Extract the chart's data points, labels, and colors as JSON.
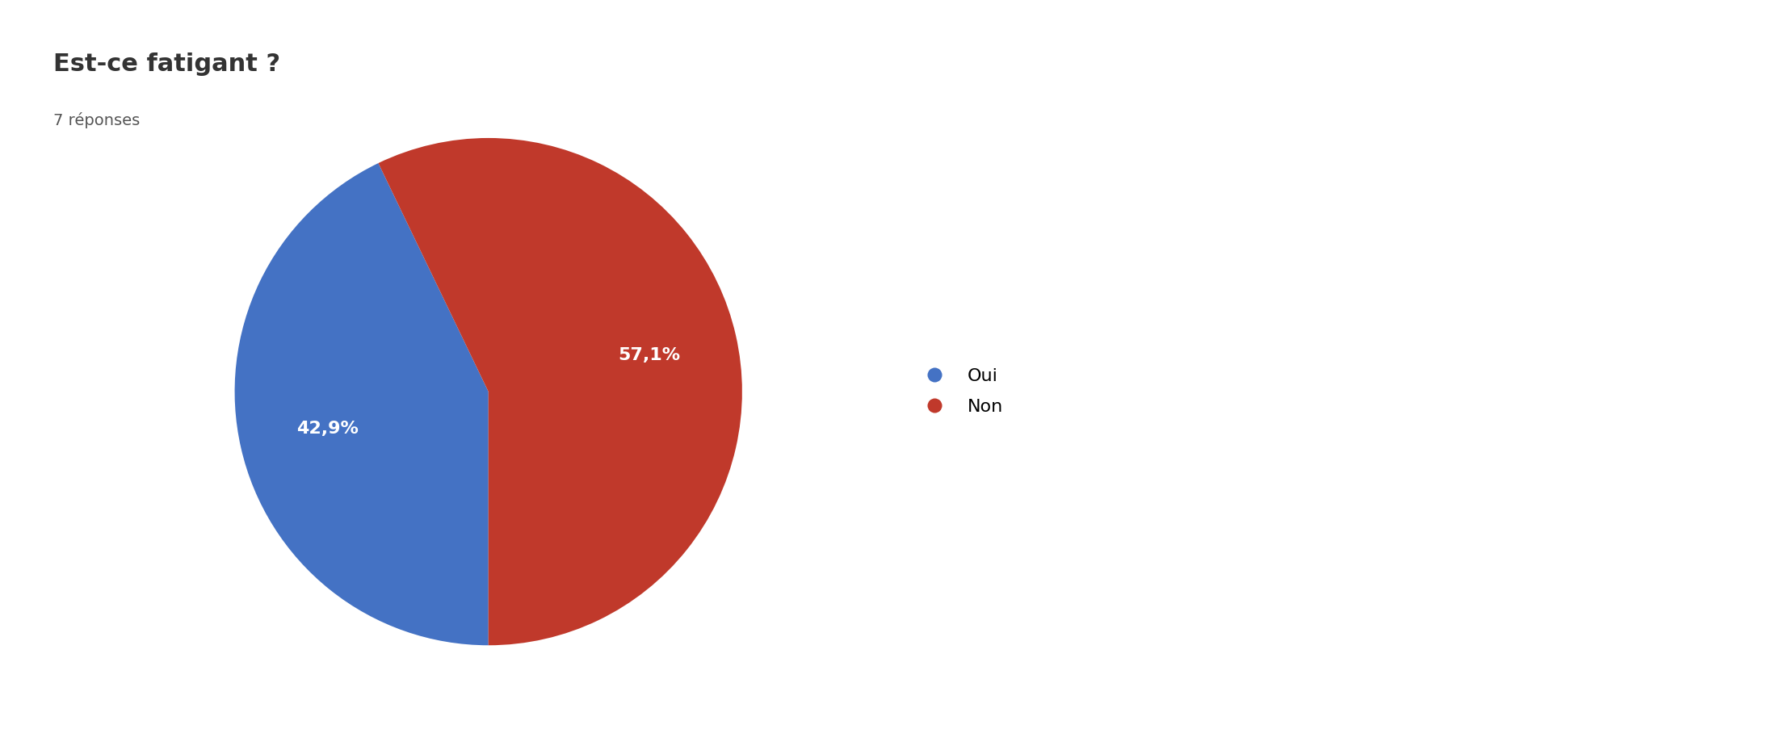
{
  "title": "Est-ce fatigant ?",
  "subtitle": "7 réponses",
  "labels": [
    "Oui",
    "Non"
  ],
  "values": [
    3,
    4
  ],
  "percentages": [
    "42,9%",
    "57,1%"
  ],
  "colors": [
    "#4472C4",
    "#C0392B"
  ],
  "background_color": "#ffffff",
  "title_fontsize": 22,
  "subtitle_fontsize": 14,
  "legend_fontsize": 16,
  "autopct_fontsize": 16,
  "startangle": 270
}
